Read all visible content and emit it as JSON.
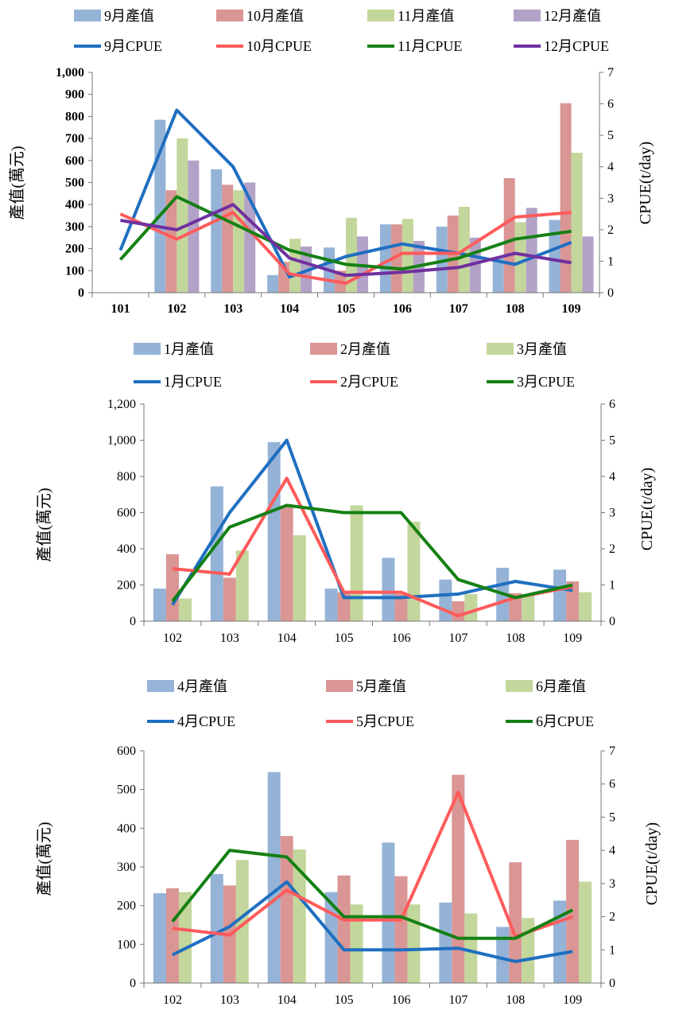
{
  "colors": {
    "bar_blue": "#95b3d7",
    "bar_red": "#d99694",
    "bar_green": "#c3d69b",
    "bar_purple": "#b3a2c7",
    "line_blue": "#1f6fc1",
    "line_red": "#ff5b5b",
    "line_green": "#148014",
    "line_purple": "#7030a0"
  },
  "chart_data": [
    {
      "type": "bar",
      "categories": [
        "101",
        "102",
        "103",
        "104",
        "105",
        "106",
        "107",
        "108",
        "109"
      ],
      "ylabel": "產值(萬元)",
      "y2label": "CPUE(t/day)",
      "ylim": [
        0,
        1000
      ],
      "y2lim": [
        0,
        7
      ],
      "yticks": [
        "0",
        "100",
        "200",
        "300",
        "400",
        "500",
        "600",
        "700",
        "800",
        "900",
        "1,000"
      ],
      "y2ticks": [
        "0",
        "1",
        "2",
        "3",
        "4",
        "5",
        "6",
        "7"
      ],
      "grid": false,
      "legend_position": "top",
      "series": [
        {
          "name": "9月產值",
          "kind": "bar",
          "color": "bar_blue",
          "values": [
            null,
            785,
            560,
            80,
            205,
            310,
            300,
            160,
            330
          ]
        },
        {
          "name": "10月產值",
          "kind": "bar",
          "color": "bar_red",
          "values": [
            null,
            465,
            490,
            140,
            100,
            310,
            350,
            520,
            860
          ]
        },
        {
          "name": "11月產值",
          "kind": "bar",
          "color": "bar_green",
          "values": [
            null,
            700,
            465,
            245,
            340,
            335,
            390,
            320,
            635
          ]
        },
        {
          "name": "12月產值",
          "kind": "bar",
          "color": "bar_purple",
          "values": [
            null,
            600,
            500,
            210,
            255,
            235,
            250,
            385,
            255
          ]
        },
        {
          "name": "9月CPUE",
          "kind": "line",
          "color": "line_blue",
          "values": [
            1.35,
            5.8,
            4.0,
            0.5,
            1.15,
            1.55,
            1.25,
            0.9,
            1.6
          ]
        },
        {
          "name": "10月CPUE",
          "kind": "line",
          "color": "line_red",
          "values": [
            2.5,
            1.7,
            2.55,
            0.6,
            0.3,
            1.25,
            1.25,
            2.4,
            2.55
          ]
        },
        {
          "name": "11月CPUE",
          "kind": "line",
          "color": "line_green",
          "values": [
            1.05,
            3.05,
            2.2,
            1.35,
            0.9,
            0.75,
            1.1,
            1.7,
            1.95
          ]
        },
        {
          "name": "12月CPUE",
          "kind": "line",
          "color": "line_purple",
          "values": [
            2.3,
            2.0,
            2.8,
            1.1,
            0.55,
            0.65,
            0.8,
            1.25,
            0.95
          ]
        }
      ]
    },
    {
      "type": "bar",
      "categories": [
        "102",
        "103",
        "104",
        "105",
        "106",
        "107",
        "108",
        "109"
      ],
      "ylabel": "產值(萬元)",
      "y2label": "CPUE(t/day)",
      "ylim": [
        0,
        1200
      ],
      "y2lim": [
        0,
        6
      ],
      "yticks": [
        "0",
        "200",
        "400",
        "600",
        "800",
        "1,000",
        "1,200"
      ],
      "y2ticks": [
        "0",
        "1",
        "2",
        "3",
        "4",
        "5",
        "6"
      ],
      "grid": false,
      "legend_position": "top",
      "series": [
        {
          "name": "1月產值",
          "kind": "bar",
          "color": "bar_blue",
          "values": [
            180,
            745,
            990,
            180,
            350,
            230,
            295,
            285
          ]
        },
        {
          "name": "2月產值",
          "kind": "bar",
          "color": "bar_red",
          "values": [
            370,
            240,
            630,
            160,
            150,
            110,
            155,
            220
          ]
        },
        {
          "name": "3月產值",
          "kind": "bar",
          "color": "bar_green",
          "values": [
            125,
            390,
            475,
            640,
            550,
            150,
            150,
            160
          ]
        },
        {
          "name": "1月CPUE",
          "kind": "line",
          "color": "line_blue",
          "values": [
            0.45,
            3.0,
            5.0,
            0.65,
            0.65,
            0.75,
            1.1,
            0.85
          ]
        },
        {
          "name": "2月CPUE",
          "kind": "line",
          "color": "line_red",
          "values": [
            1.45,
            1.3,
            3.95,
            0.8,
            0.8,
            0.15,
            0.65,
            0.95
          ]
        },
        {
          "name": "3月CPUE",
          "kind": "line",
          "color": "line_green",
          "values": [
            0.55,
            2.6,
            3.2,
            3.0,
            3.0,
            1.15,
            0.65,
            1.0
          ]
        }
      ]
    },
    {
      "type": "bar",
      "categories": [
        "102",
        "103",
        "104",
        "105",
        "106",
        "107",
        "108",
        "109"
      ],
      "ylabel": "產值(萬元)",
      "y2label": "CPUE(t/day)",
      "ylim": [
        0,
        600
      ],
      "y2lim": [
        0,
        7
      ],
      "yticks": [
        "0",
        "100",
        "200",
        "300",
        "400",
        "500",
        "600"
      ],
      "y2ticks": [
        "0",
        "1",
        "2",
        "3",
        "4",
        "5",
        "6",
        "7"
      ],
      "grid": false,
      "legend_position": "top",
      "series": [
        {
          "name": "4月產值",
          "kind": "bar",
          "color": "bar_blue",
          "values": [
            232,
            282,
            545,
            235,
            363,
            208,
            145,
            213
          ]
        },
        {
          "name": "5月產值",
          "kind": "bar",
          "color": "bar_red",
          "values": [
            245,
            252,
            380,
            278,
            276,
            538,
            312,
            370
          ]
        },
        {
          "name": "6月產值",
          "kind": "bar",
          "color": "bar_green",
          "values": [
            235,
            318,
            345,
            203,
            203,
            180,
            168,
            262
          ]
        },
        {
          "name": "4月CPUE",
          "kind": "line",
          "color": "line_blue",
          "values": [
            0.85,
            1.7,
            3.05,
            1.0,
            1.0,
            1.05,
            0.65,
            0.95
          ]
        },
        {
          "name": "5月CPUE",
          "kind": "line",
          "color": "line_red",
          "values": [
            1.65,
            1.45,
            2.8,
            1.9,
            1.9,
            5.75,
            1.4,
            2.0
          ]
        },
        {
          "name": "6月CPUE",
          "kind": "line",
          "color": "line_green",
          "values": [
            1.85,
            4.0,
            3.8,
            2.0,
            2.0,
            1.35,
            1.35,
            2.2
          ]
        }
      ]
    }
  ]
}
